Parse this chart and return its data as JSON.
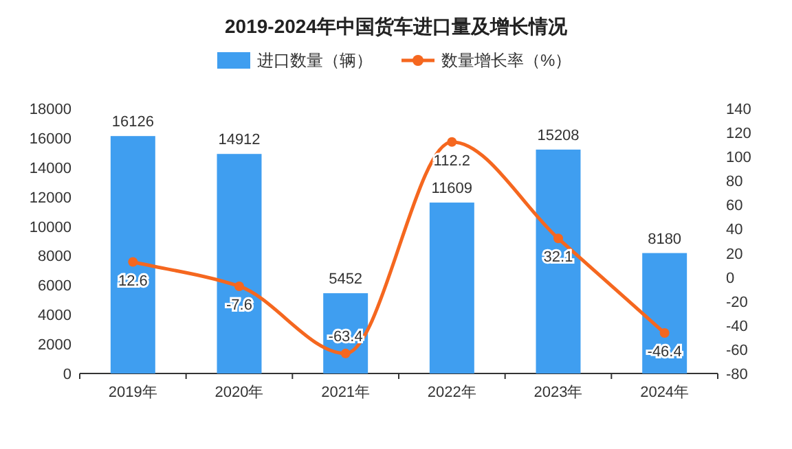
{
  "chart_data": {
    "type": "bar",
    "title": "2019-2024年中国货车进口量及增长情况",
    "categories": [
      "2019年",
      "2020年",
      "2021年",
      "2022年",
      "2023年",
      "2024年"
    ],
    "series": [
      {
        "name": "进口数量（辆）",
        "color": "#3f9ef0",
        "values": [
          16126,
          14912,
          5452,
          11609,
          15208,
          8180
        ]
      },
      {
        "name": "数量增长率（%）",
        "type": "line",
        "axis": "y2",
        "marker": "circle",
        "color": "#f5671f",
        "values": [
          12.6,
          -7.6,
          -63.4,
          112.2,
          32.1,
          -46.4
        ]
      }
    ],
    "ylim": [
      0,
      18000
    ],
    "yticks": [
      0,
      2000,
      4000,
      6000,
      8000,
      10000,
      12000,
      14000,
      16000,
      18000
    ],
    "y2lim": [
      -80,
      140
    ],
    "y2ticks": [
      -80,
      -60,
      -40,
      -20,
      0,
      20,
      40,
      60,
      80,
      100,
      120,
      140
    ],
    "data_labels": true,
    "legend": "top"
  }
}
